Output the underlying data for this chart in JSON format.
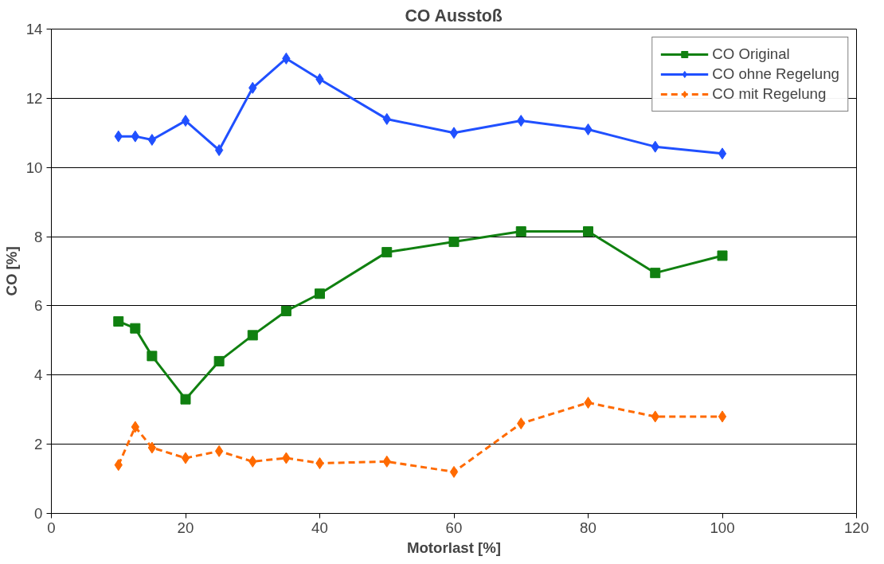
{
  "chart_data": {
    "type": "line",
    "title": "CO Ausstoß",
    "xlabel": "Motorlast [%]",
    "ylabel": "CO [%]",
    "xlim": [
      0,
      120
    ],
    "xticks": [
      0,
      20,
      40,
      60,
      80,
      100,
      120
    ],
    "ylim": [
      0,
      14
    ],
    "yticks": [
      0,
      2,
      4,
      6,
      8,
      10,
      12,
      14
    ],
    "grid": "y",
    "legend": "top right",
    "x": [
      10,
      12.5,
      15,
      20,
      25,
      30,
      35,
      40,
      50,
      60,
      70,
      80,
      90,
      100
    ],
    "series": [
      {
        "name": "CO Original",
        "color": "#108010",
        "marker": "square",
        "line_style": "solid",
        "values": [
          5.55,
          5.35,
          4.55,
          3.3,
          4.4,
          5.15,
          5.85,
          6.35,
          7.55,
          7.85,
          8.15,
          8.15,
          6.95,
          7.45
        ]
      },
      {
        "name": "CO ohne Regelung",
        "color": "#2050ff",
        "marker": "diamond",
        "line_style": "solid",
        "values": [
          10.9,
          10.9,
          10.8,
          11.35,
          10.5,
          12.3,
          13.15,
          12.55,
          11.4,
          11.0,
          11.35,
          11.1,
          10.6,
          10.4
        ]
      },
      {
        "name": "CO mit Regelung",
        "color": "#ff6a00",
        "marker": "diamond",
        "line_style": "dashed",
        "values": [
          1.4,
          2.5,
          1.9,
          1.6,
          1.8,
          1.5,
          1.6,
          1.45,
          1.5,
          1.2,
          2.6,
          3.2,
          2.8,
          2.8
        ]
      }
    ]
  }
}
